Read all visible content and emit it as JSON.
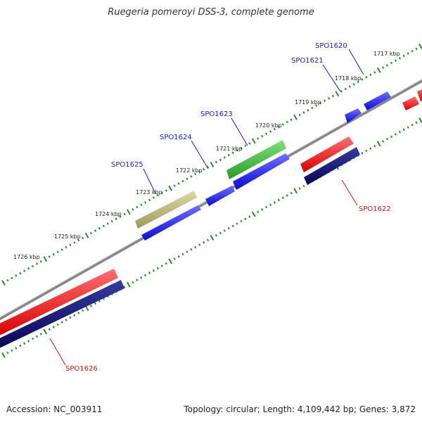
{
  "title": "Ruegeria pomeroyi DSS-3, complete genome",
  "footer": {
    "accession": "Accession: NC_003911",
    "summary": "Topology: circular; Length: 4,109,442 bp; Genes: 3,872"
  },
  "colors": {
    "forward_cds": "#1010e8",
    "reverse_cds": "#ee1111",
    "reverse_gene": "#0a0a78",
    "highlight_green": "#3ab83a",
    "highlight_olive": "#b8b478",
    "backbone": "#777777",
    "tick": "#2a8a2a",
    "label_blue": "#1a1acc",
    "label_red": "#dd1111"
  },
  "scale": {
    "unit": "kbp",
    "labels": [
      "1717 kbp",
      "1718 kbp",
      "1719 kbp",
      "1720 kbp",
      "1721 kbp",
      "1722 kbp",
      "1723 kbp",
      "1724 kbp",
      "1725 kbp",
      "1726 kbp"
    ]
  },
  "gene_labels": [
    {
      "id": "SPO1620",
      "strand": "forward"
    },
    {
      "id": "SPO1621",
      "strand": "forward"
    },
    {
      "id": "SPO1623",
      "strand": "forward"
    },
    {
      "id": "SPO1624",
      "strand": "forward"
    },
    {
      "id": "SPO1625",
      "strand": "forward"
    },
    {
      "id": "SPO1622",
      "strand": "reverse"
    },
    {
      "id": "SPO1626",
      "strand": "reverse"
    }
  ]
}
